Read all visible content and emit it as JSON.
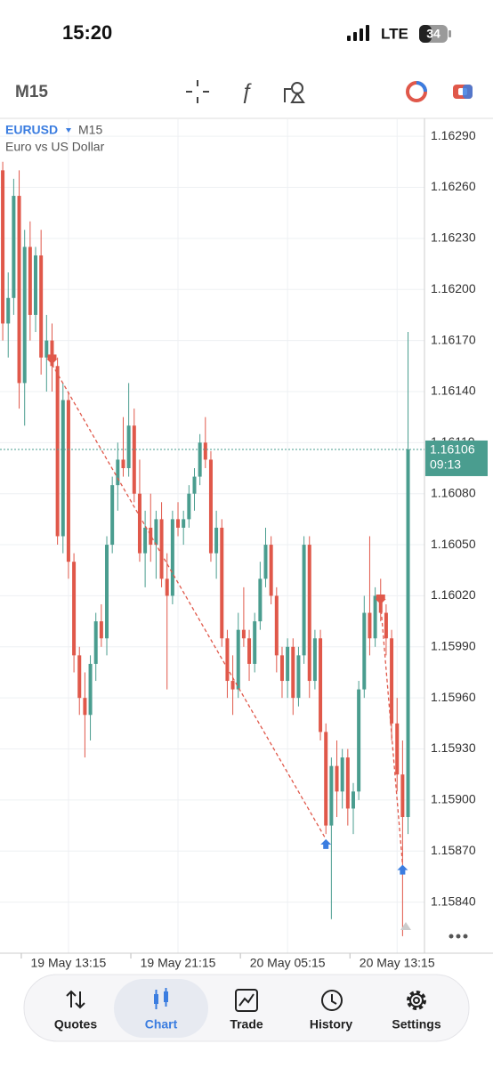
{
  "status_bar": {
    "time": "15:20",
    "network": "LTE",
    "battery": "34"
  },
  "toolbar": {
    "timeframe": "M15"
  },
  "chart_data": {
    "type": "candlestick",
    "symbol": "EURUSD",
    "timeframe": "M15",
    "description": "Euro vs US Dollar",
    "up_color": "#4a9d8f",
    "down_color": "#e0584a",
    "grid": true,
    "xlim": [
      -0.5,
      77
    ],
    "xticks": [
      {
        "value": 12,
        "label": "19 May 13:15"
      },
      {
        "value": 32,
        "label": "19 May 21:15"
      },
      {
        "value": 52,
        "label": "20 May 05:15"
      },
      {
        "value": 72,
        "label": "20 May 13:15"
      }
    ],
    "ylim": [
      1.1581,
      1.163
    ],
    "yticks": [
      {
        "value": 1.1584,
        "label": "1.15840"
      },
      {
        "value": 1.1587,
        "label": "1.15870"
      },
      {
        "value": 1.159,
        "label": "1.15900"
      },
      {
        "value": 1.1593,
        "label": "1.15930"
      },
      {
        "value": 1.1596,
        "label": "1.15960"
      },
      {
        "value": 1.1599,
        "label": "1.15990"
      },
      {
        "value": 1.1602,
        "label": "1.16020"
      },
      {
        "value": 1.1605,
        "label": "1.16050"
      },
      {
        "value": 1.1608,
        "label": "1.16080"
      },
      {
        "value": 1.1611,
        "label": "1.16110"
      },
      {
        "value": 1.1614,
        "label": "1.16140"
      },
      {
        "value": 1.1617,
        "label": "1.16170"
      },
      {
        "value": 1.162,
        "label": "1.16200"
      },
      {
        "value": 1.1623,
        "label": "1.16230"
      },
      {
        "value": 1.1626,
        "label": "1.16260"
      },
      {
        "value": 1.1629,
        "label": "1.16290"
      }
    ],
    "current_price": 1.16106,
    "countdown": "09:13",
    "open": [
      1.1627,
      1.1618,
      1.16195,
      1.16255,
      1.16145,
      1.16225,
      1.16185,
      1.1622,
      1.1616,
      1.1617,
      1.16155,
      1.16055,
      1.16135,
      1.1604,
      1.15985,
      1.1596,
      1.1595,
      1.1598,
      1.16005,
      1.15995,
      1.1605,
      1.16085,
      1.161,
      1.16095,
      1.1612,
      1.1608,
      1.16045,
      1.1606,
      1.1605,
      1.16065,
      1.1603,
      1.1602,
      1.16065,
      1.1606,
      1.16065,
      1.1608,
      1.1609,
      1.1611,
      1.161,
      1.16045,
      1.1606,
      1.15995,
      1.1597,
      1.15965,
      1.16,
      1.15995,
      1.1598,
      1.16005,
      1.1603,
      1.1605,
      1.1602,
      1.15985,
      1.1597,
      1.1599,
      1.1596,
      1.15985,
      1.1605,
      1.1597,
      1.15995,
      1.1594,
      1.15885,
      1.1592,
      1.15905,
      1.15925,
      1.15895,
      1.15905,
      1.15965,
      1.1601,
      1.15995,
      1.1602,
      1.1601,
      1.15995,
      1.15945,
      1.15915,
      1.1589
    ],
    "high": [
      1.16275,
      1.1621,
      1.16265,
      1.1627,
      1.16235,
      1.1624,
      1.16225,
      1.16235,
      1.16185,
      1.1618,
      1.1616,
      1.16145,
      1.1614,
      1.16045,
      1.1599,
      1.15975,
      1.15985,
      1.1601,
      1.16015,
      1.16055,
      1.1609,
      1.1611,
      1.16125,
      1.16145,
      1.1613,
      1.161,
      1.1607,
      1.1608,
      1.1607,
      1.16075,
      1.16045,
      1.1607,
      1.16075,
      1.1607,
      1.16085,
      1.16095,
      1.16115,
      1.16125,
      1.16105,
      1.1607,
      1.16065,
      1.16,
      1.15985,
      1.1601,
      1.16025,
      1.16,
      1.1601,
      1.1604,
      1.1606,
      1.16055,
      1.16025,
      1.1599,
      1.15995,
      1.15995,
      1.1599,
      1.16055,
      1.16055,
      1.16,
      1.16,
      1.15945,
      1.15925,
      1.15935,
      1.1593,
      1.1593,
      1.1591,
      1.1597,
      1.1602,
      1.16055,
      1.16025,
      1.1603,
      1.16015,
      1.16,
      1.1596,
      1.15935,
      1.16175
    ],
    "low": [
      1.1617,
      1.1616,
      1.16185,
      1.1613,
      1.1612,
      1.1617,
      1.16175,
      1.1615,
      1.1614,
      1.1614,
      1.1605,
      1.16045,
      1.1603,
      1.15975,
      1.1595,
      1.15925,
      1.15935,
      1.1597,
      1.1599,
      1.15985,
      1.16045,
      1.1607,
      1.1609,
      1.1609,
      1.16075,
      1.1604,
      1.16025,
      1.1604,
      1.1603,
      1.16025,
      1.15965,
      1.16015,
      1.16055,
      1.1605,
      1.1606,
      1.1607,
      1.16085,
      1.16095,
      1.1604,
      1.1603,
      1.1599,
      1.1596,
      1.1595,
      1.1596,
      1.1599,
      1.1597,
      1.15975,
      1.16,
      1.16025,
      1.16015,
      1.15975,
      1.1596,
      1.1596,
      1.1595,
      1.15955,
      1.1598,
      1.1596,
      1.15965,
      1.15935,
      1.1588,
      1.1583,
      1.1589,
      1.15895,
      1.15885,
      1.1588,
      1.159,
      1.1596,
      1.15985,
      1.1599,
      1.16005,
      1.15985,
      1.15935,
      1.15905,
      1.1582,
      1.1588
    ],
    "close": [
      1.1618,
      1.16195,
      1.16255,
      1.16145,
      1.16225,
      1.16185,
      1.1622,
      1.1616,
      1.1617,
      1.16155,
      1.16055,
      1.16135,
      1.1604,
      1.15985,
      1.1596,
      1.1595,
      1.1598,
      1.16005,
      1.15995,
      1.1605,
      1.16085,
      1.161,
      1.16095,
      1.1612,
      1.1608,
      1.16045,
      1.1606,
      1.1605,
      1.16065,
      1.1603,
      1.1602,
      1.16065,
      1.1606,
      1.16065,
      1.1608,
      1.1609,
      1.1611,
      1.161,
      1.16045,
      1.1606,
      1.15995,
      1.1597,
      1.15965,
      1.16,
      1.15995,
      1.1598,
      1.16005,
      1.1603,
      1.1605,
      1.1602,
      1.15985,
      1.1597,
      1.1599,
      1.1596,
      1.15985,
      1.1605,
      1.1597,
      1.15995,
      1.1594,
      1.15885,
      1.1592,
      1.15905,
      1.15925,
      1.15895,
      1.15905,
      1.15965,
      1.1601,
      1.15995,
      1.1602,
      1.1601,
      1.15995,
      1.15945,
      1.15915,
      1.1589,
      1.16106
    ],
    "trade_lines": [
      {
        "x": [
          9,
          59
        ],
        "values": [
          1.16156,
          1.15877
        ]
      },
      {
        "x": [
          69,
          73
        ],
        "values": [
          1.16015,
          1.15862
        ]
      }
    ]
  },
  "nav": {
    "items": [
      {
        "label": "Quotes"
      },
      {
        "label": "Chart"
      },
      {
        "label": "Trade"
      },
      {
        "label": "History"
      },
      {
        "label": "Settings"
      }
    ]
  }
}
